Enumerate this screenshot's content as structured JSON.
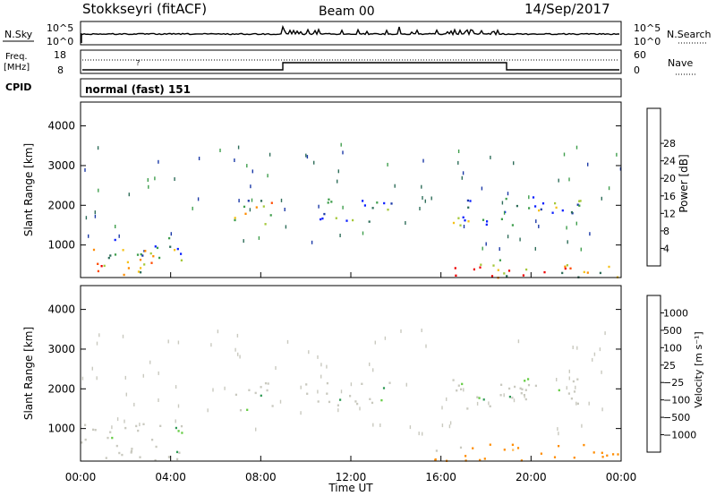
{
  "header": {
    "station": "Stokkseyri (fitACF)",
    "beam": "Beam 00",
    "date": "14/Sep/2017"
  },
  "strips": {
    "nsky_label": "N.Sky",
    "nsearch_label": "N.Search",
    "nsky_ticks": [
      "10^5",
      "10^0"
    ],
    "nsearch_ticks": [
      "10^5",
      "10^0"
    ],
    "freq_label_line1": "Freq.",
    "freq_label_line2": "[MHz]",
    "freq_ticks": [
      "18",
      "8"
    ],
    "nave_label": "Nave",
    "nave_ticks": [
      "60",
      "0"
    ],
    "cpid_label": "CPID",
    "cpid_value": "normal (fast) 151"
  },
  "chart_data": [
    {
      "type": "heatmap",
      "name": "power",
      "ylabel": "Slant Range [km]",
      "yticks": [
        1000,
        2000,
        3000,
        4000
      ],
      "ylim": [
        180,
        4600
      ],
      "xlim": [
        0,
        24
      ],
      "colorbar": {
        "label": "Power [dB]",
        "ticks": [
          "4",
          "8",
          "12",
          "16",
          "20",
          "24",
          "28"
        ],
        "colors": [
          "#0a1fff",
          "#1c3aa8",
          "#2f6e5a",
          "#3f9e4c",
          "#a5c83a",
          "#f6c21a",
          "#ff8c00",
          "#ff4a00",
          "#ee0000"
        ]
      },
      "regions": [
        {
          "t0": 0.0,
          "t1": 3.2,
          "r0": 200,
          "r1": 1000,
          "level": 0.55
        },
        {
          "t0": 1.2,
          "t1": 4.6,
          "r0": 500,
          "r1": 1200,
          "level": 0.45
        },
        {
          "t0": 6.8,
          "t1": 8.8,
          "r0": 1450,
          "r1": 2250,
          "level": 0.4
        },
        {
          "t0": 15.6,
          "t1": 24.0,
          "r0": 200,
          "r1": 650,
          "level": 0.65
        },
        {
          "t0": 9.8,
          "t1": 13.8,
          "r0": 1600,
          "r1": 2200,
          "level": 0.15
        },
        {
          "t0": 16.5,
          "t1": 22.2,
          "r0": 1500,
          "r1": 2300,
          "level": 0.2
        }
      ]
    },
    {
      "type": "heatmap",
      "name": "velocity",
      "ylabel": "Slant Range [km]",
      "yticks": [
        1000,
        2000,
        3000,
        4000
      ],
      "ylim": [
        180,
        4600
      ],
      "xlim": [
        0,
        24
      ],
      "colorbar": {
        "label": "Velocity [m s⁻¹]",
        "ticks": [
          "1000",
          "500",
          "100",
          "25",
          "−25",
          "−100",
          "−500",
          "−1000"
        ],
        "colors": [
          "#1f3fbf",
          "#2e6e99",
          "#2f9a55",
          "#66cc44",
          "#c9c9bf",
          "#ffbb55",
          "#ff8c00",
          "#ff5500",
          "#ee0000"
        ]
      },
      "regions": [
        {
          "t0": 0.0,
          "t1": 4.6,
          "r0": 200,
          "r1": 1200,
          "level": 0.5
        },
        {
          "t0": 6.8,
          "t1": 8.8,
          "r0": 1450,
          "r1": 2250,
          "level": 0.5
        },
        {
          "t0": 15.6,
          "t1": 24.0,
          "r0": 200,
          "r1": 650,
          "level": 0.8
        },
        {
          "t0": 9.8,
          "t1": 13.8,
          "r0": 1600,
          "r1": 2200,
          "level": 0.5
        },
        {
          "t0": 16.5,
          "t1": 22.2,
          "r0": 1500,
          "r1": 2300,
          "level": 0.5
        }
      ]
    }
  ],
  "xaxis": {
    "ticks": [
      "00:00",
      "04:00",
      "08:00",
      "12:00",
      "16:00",
      "20:00",
      "00:00"
    ],
    "label": "Time UT",
    "hours": [
      0,
      4,
      8,
      12,
      16,
      20,
      24
    ]
  }
}
